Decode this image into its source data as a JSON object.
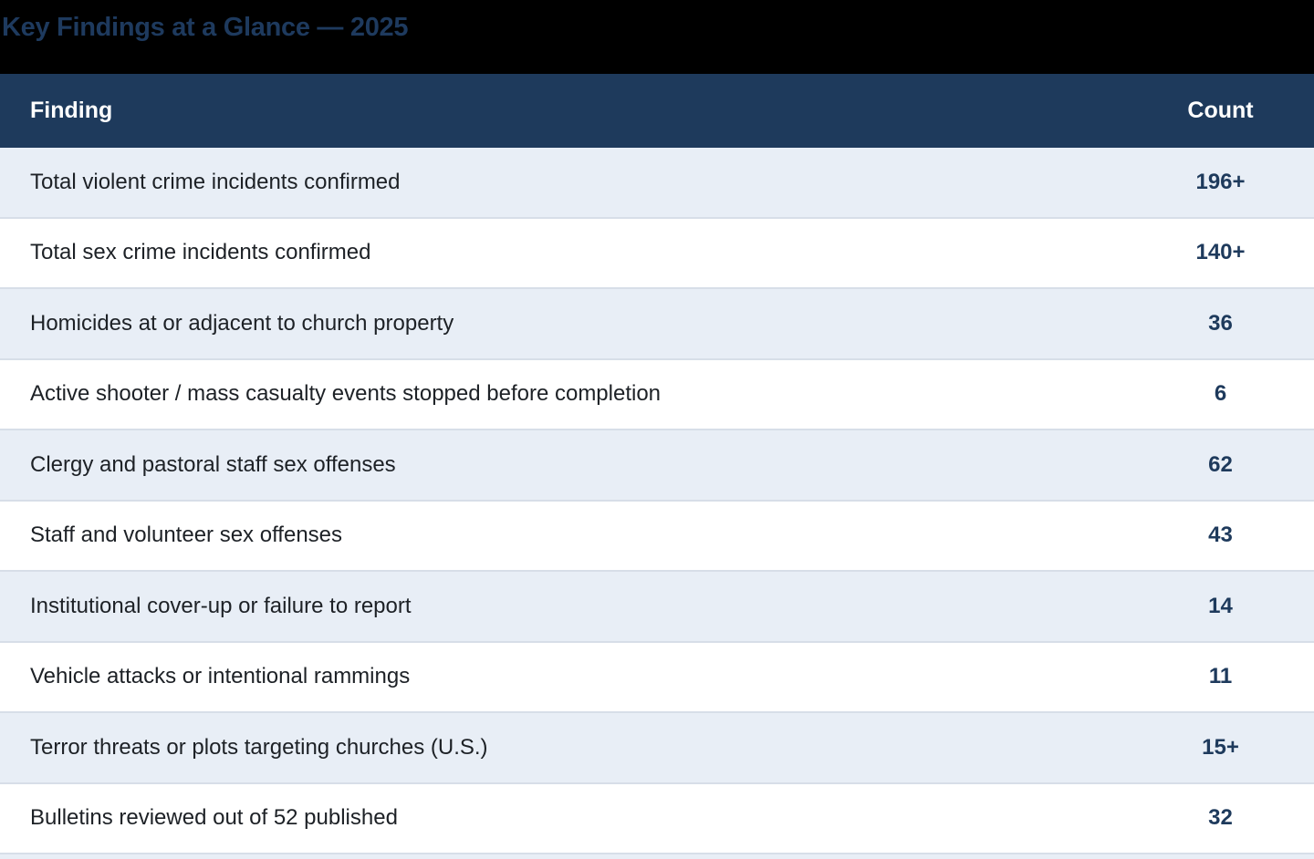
{
  "title": "Key Findings at a Glance — 2025",
  "table": {
    "header": {
      "finding": "Finding",
      "count": "Count"
    },
    "rows": [
      {
        "finding": "Total violent crime incidents confirmed",
        "count": "196+"
      },
      {
        "finding": "Total sex crime incidents confirmed",
        "count": "140+"
      },
      {
        "finding": "Homicides at or adjacent to church property",
        "count": "36"
      },
      {
        "finding": "Active shooter / mass casualty events stopped before completion",
        "count": "6"
      },
      {
        "finding": "Clergy and pastoral staff sex offenses",
        "count": "62"
      },
      {
        "finding": "Staff and volunteer sex offenses",
        "count": "43"
      },
      {
        "finding": "Institutional cover-up or failure to report",
        "count": "14"
      },
      {
        "finding": "Vehicle attacks or intentional rammings",
        "count": "11"
      },
      {
        "finding": "Terror threats or plots targeting churches (U.S.)",
        "count": "15+"
      },
      {
        "finding": "Bulletins reviewed out of 52 published",
        "count": "32"
      }
    ]
  },
  "colors": {
    "page_background": "#000000",
    "title_text": "#1e3a5e",
    "header_background": "#1e3a5c",
    "header_text": "#ffffff",
    "row_background": "#ffffff",
    "row_alt_background": "#e8eef6",
    "row_border": "#d7dee8",
    "finding_text": "#1d2126",
    "count_text": "#1e3a5c"
  }
}
